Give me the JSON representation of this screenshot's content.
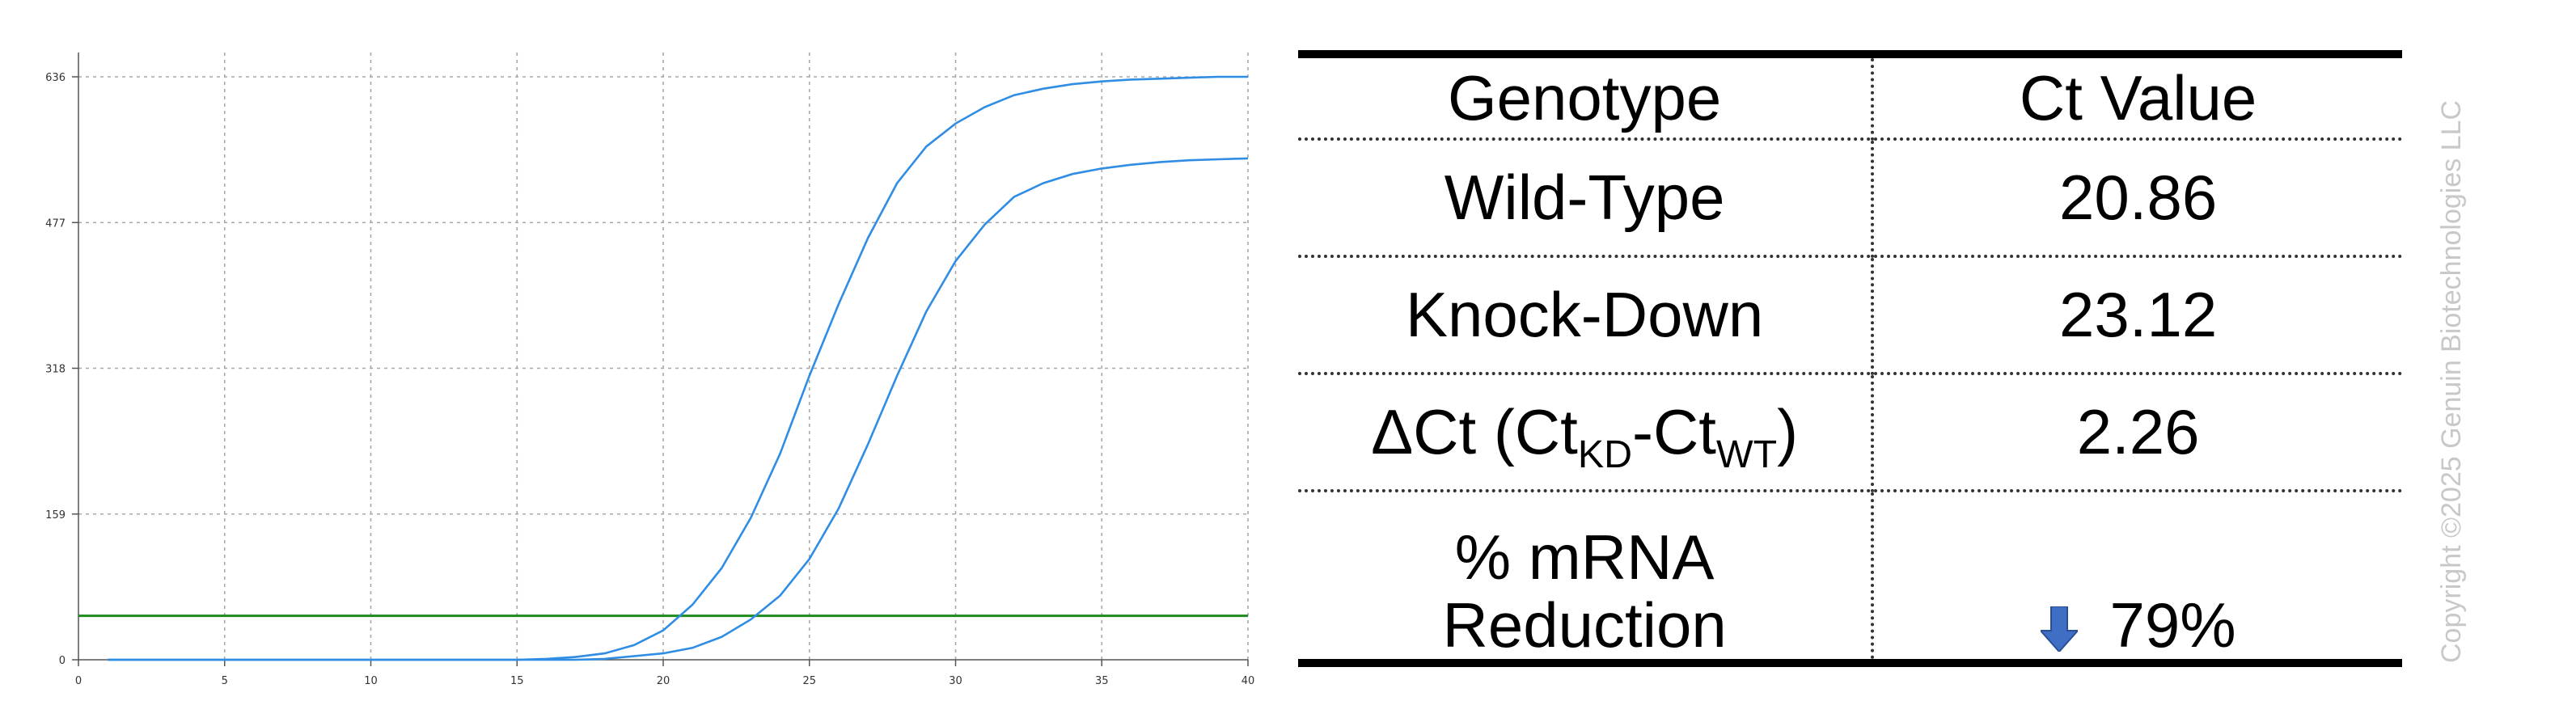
{
  "chart_data": {
    "type": "line",
    "x_ticks": [
      0,
      5,
      10,
      15,
      20,
      25,
      30,
      35,
      40
    ],
    "y_ticks": [
      0,
      159,
      318,
      477,
      636
    ],
    "xlim": [
      0,
      40
    ],
    "ylim": [
      0,
      636
    ],
    "grid": true,
    "threshold": 48,
    "colors": {
      "curves": "#2f8de4",
      "threshold": "#1f8a1f",
      "grid": "#a8a8a8"
    },
    "series": [
      {
        "x": [
          1,
          5,
          10,
          15,
          16,
          17,
          18,
          19,
          20,
          21,
          22,
          23,
          24,
          25,
          26,
          27,
          28,
          29,
          30,
          31,
          32,
          33,
          34,
          35,
          36,
          37,
          38,
          39,
          40
        ],
        "values": [
          0,
          0,
          0,
          0,
          1,
          3,
          7,
          16,
          32,
          60,
          100,
          155,
          225,
          310,
          388,
          460,
          520,
          560,
          585,
          603,
          616,
          623,
          628,
          631,
          633,
          634,
          635,
          636,
          636
        ]
      },
      {
        "x": [
          1,
          5,
          10,
          15,
          17,
          18,
          19,
          20,
          21,
          22,
          23,
          24,
          25,
          26,
          27,
          28,
          29,
          30,
          31,
          32,
          33,
          34,
          35,
          36,
          37,
          38,
          39,
          40
        ],
        "values": [
          0,
          0,
          0,
          0,
          0,
          1,
          4,
          7,
          13,
          25,
          44,
          70,
          110,
          165,
          235,
          310,
          380,
          435,
          475,
          505,
          520,
          530,
          536,
          540,
          543,
          545,
          546,
          547
        ]
      }
    ]
  },
  "table": {
    "header": [
      "Genotype",
      "Ct Value"
    ],
    "rows": [
      {
        "label": "Wild-Type",
        "value": "20.86"
      },
      {
        "label": "Knock-Down",
        "value": "23.12"
      },
      {
        "label_main": "ΔCt (Ct",
        "sub1": "KD",
        "mid": "-Ct",
        "sub2": "WT",
        "tail": ")",
        "value": "2.26"
      },
      {
        "label_line1": "% mRNA",
        "label_line2": "Reduction",
        "value": "79%",
        "icon": "down-arrow-icon"
      }
    ]
  },
  "copyright": "Copyright ©2025 Genuin Biotechnologies LLC"
}
